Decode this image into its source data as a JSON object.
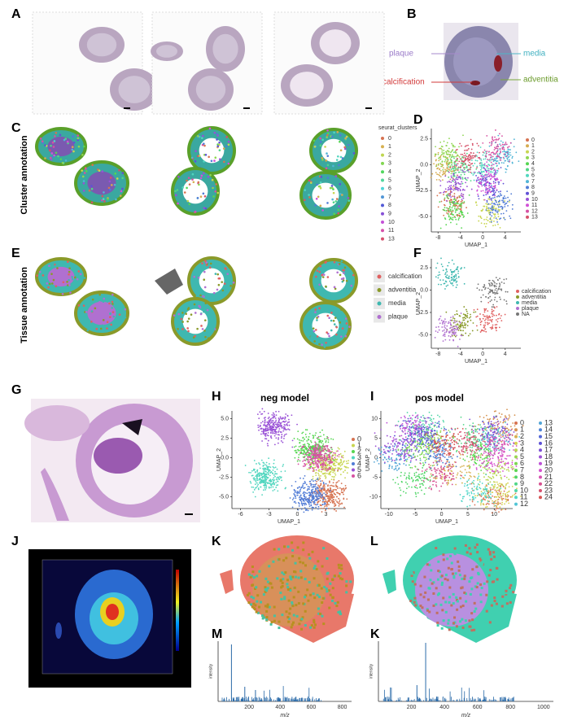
{
  "A": {
    "label": "A"
  },
  "B": {
    "label": "B",
    "plaque": "plaque",
    "media": "media",
    "calcification": "calcification",
    "adventitia": "adventitia"
  },
  "C": {
    "label": "C",
    "row_title": "Cluster annotation",
    "legend_title": "seurat_clusters",
    "legend": [
      "0",
      "1",
      "2",
      "3",
      "4",
      "5",
      "6",
      "7",
      "8",
      "9",
      "10",
      "11",
      "13"
    ]
  },
  "D": {
    "label": "D",
    "x_label": "UMAP_1",
    "y_label": "UMAP_2",
    "xticks": [
      "-8",
      "-4",
      "0",
      "4"
    ],
    "yticks": [
      "2.5",
      "0.0",
      "-2.5",
      "-5.0"
    ],
    "legend": [
      "0",
      "1",
      "2",
      "3",
      "4",
      "5",
      "6",
      "7",
      "8",
      "9",
      "10",
      "11",
      "12",
      "13"
    ]
  },
  "E": {
    "label": "E",
    "row_title": "Tissue annotation",
    "legend": [
      "calcification",
      "adventitia",
      "media",
      "plaque"
    ]
  },
  "F": {
    "label": "F",
    "x_label": "UMAP_1",
    "y_label": "UMAP_2",
    "xticks": [
      "-8",
      "-4",
      "0",
      "4"
    ],
    "yticks": [
      "2.5",
      "0.0",
      "-2.5",
      "-5.0"
    ],
    "legend": [
      "calcification",
      "adventitia",
      "media",
      "plaque",
      "NA"
    ]
  },
  "G": {
    "label": "G"
  },
  "H": {
    "label": "H",
    "title": "neg model",
    "x_label": "UMAP_1",
    "y_label": "UMAP_2",
    "xticks": [
      "-6",
      "-3",
      "0",
      "3"
    ],
    "yticks": [
      "5.0",
      "2.5",
      "0.0",
      "-2.5",
      "-5.0"
    ],
    "legend": [
      "0",
      "1",
      "2",
      "3",
      "4",
      "5",
      "6"
    ]
  },
  "I": {
    "label": "I",
    "title": "pos model",
    "x_label": "UMAP_1",
    "y_label": "UMAP_2",
    "xticks": [
      "-10",
      "-5",
      "0",
      "5",
      "10"
    ],
    "yticks": [
      "10",
      "5",
      "0",
      "-5",
      "-10"
    ],
    "legend": [
      "0",
      "1",
      "2",
      "3",
      "4",
      "5",
      "6",
      "7",
      "8",
      "9",
      "10",
      "11",
      "12",
      "13",
      "14",
      "15",
      "16",
      "17",
      "18",
      "19",
      "20",
      "21",
      "22",
      "23",
      "24"
    ]
  },
  "J": {
    "label": "J"
  },
  "K": {
    "label": "K"
  },
  "L": {
    "label": "L"
  },
  "M": {
    "label": "M",
    "x_label": "m/z",
    "y_label": "intensity",
    "xticks": [
      "200",
      "400",
      "600",
      "800"
    ]
  },
  "K2": {
    "label": "K",
    "x_label": "m/z",
    "y_label": "intensity",
    "xticks": [
      "200",
      "400",
      "600",
      "800",
      "1000"
    ]
  }
}
